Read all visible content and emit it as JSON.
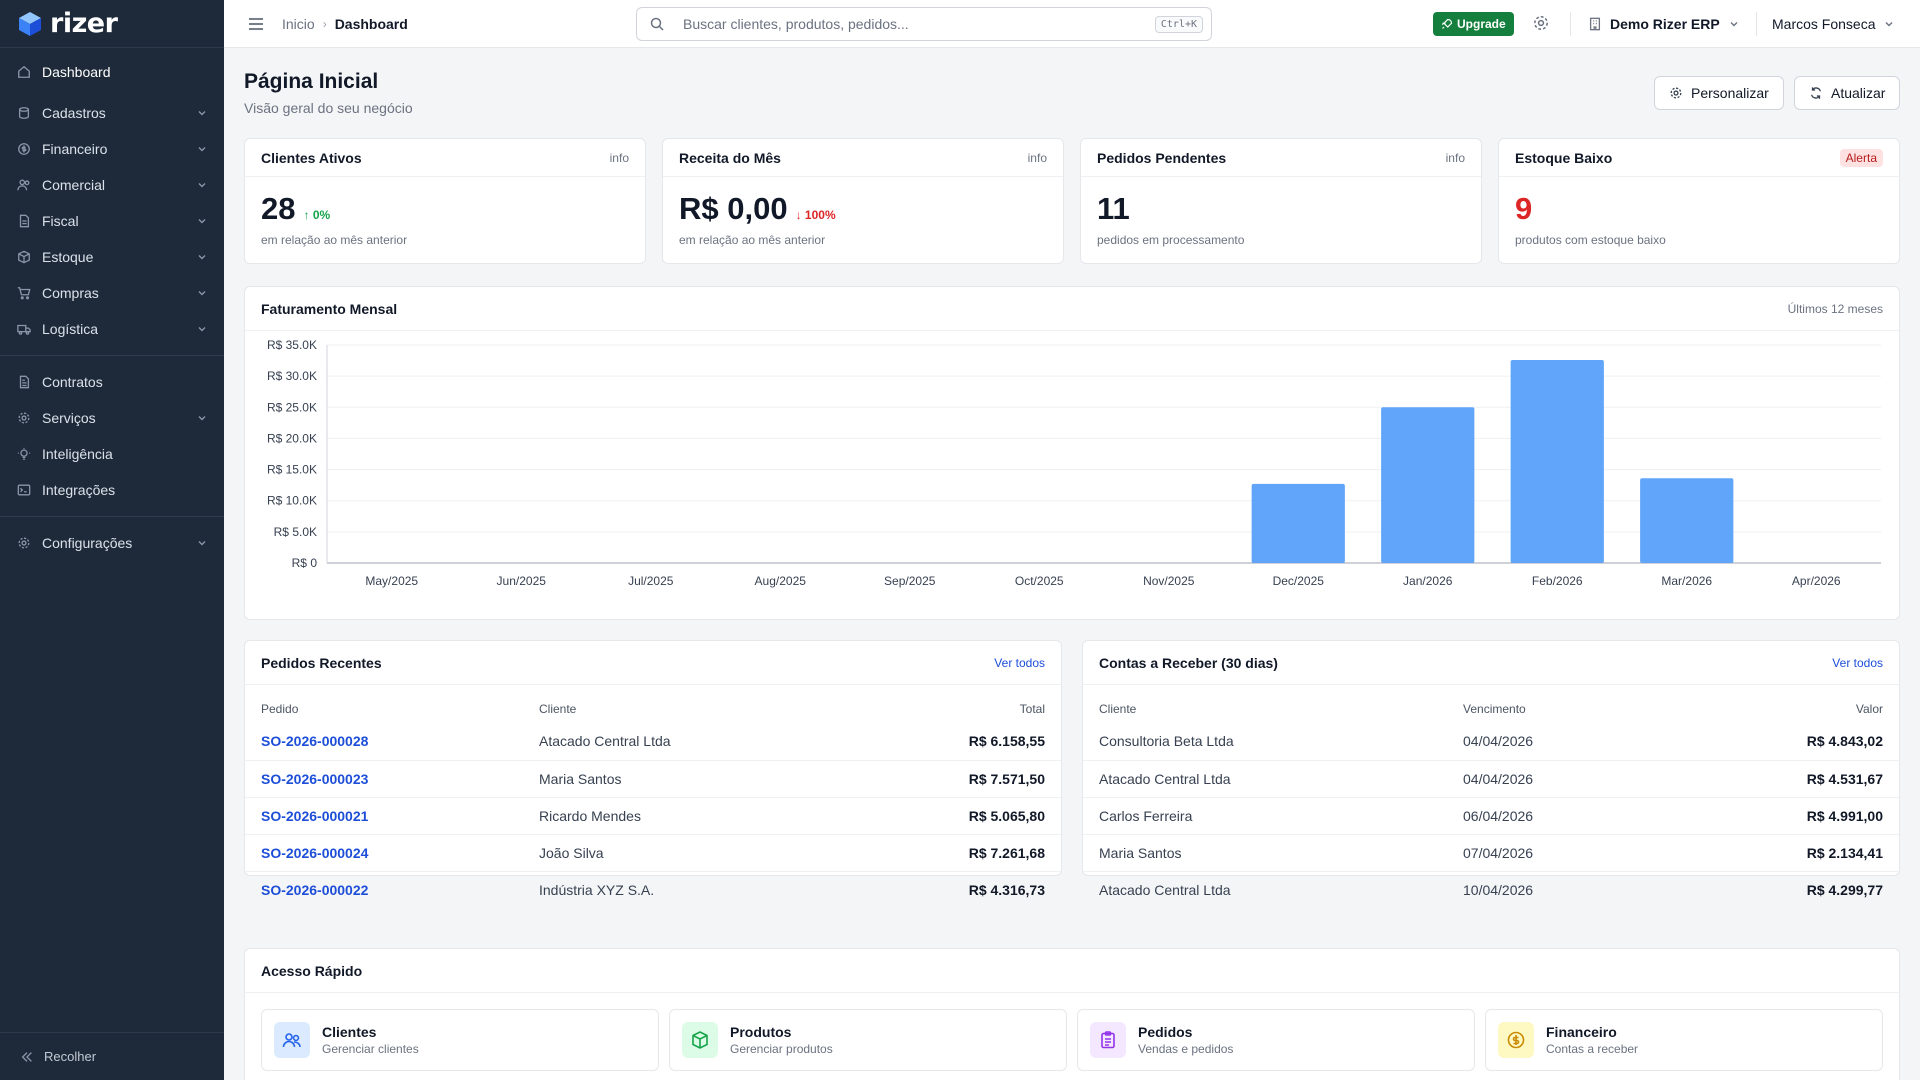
{
  "app": {
    "name": "rizer"
  },
  "sidebar": {
    "items": [
      {
        "label": "Dashboard",
        "icon": "home-icon"
      },
      {
        "label": "Cadastros",
        "icon": "database-icon"
      },
      {
        "label": "Financeiro",
        "icon": "dollar-icon"
      },
      {
        "label": "Comercial",
        "icon": "users-icon"
      },
      {
        "label": "Fiscal",
        "icon": "file-icon"
      },
      {
        "label": "Estoque",
        "icon": "box-icon"
      },
      {
        "label": "Compras",
        "icon": "cart-icon"
      },
      {
        "label": "Logística",
        "icon": "truck-icon"
      },
      {
        "label": "Contratos",
        "icon": "contract-icon"
      },
      {
        "label": "Serviços",
        "icon": "gear-icon"
      },
      {
        "label": "Inteligência",
        "icon": "bulb-icon"
      },
      {
        "label": "Integrações",
        "icon": "terminal-icon"
      },
      {
        "label": "Configurações",
        "icon": "settings-icon"
      }
    ],
    "collapse_label": "Recolher"
  },
  "topbar": {
    "breadcrumb_home": "Inicio",
    "breadcrumb_current": "Dashboard",
    "search_placeholder": "Buscar clientes, produtos, pedidos...",
    "search_shortcut": "Ctrl+K",
    "upgrade_label": "Upgrade",
    "org_name": "Demo Rizer ERP",
    "user_name": "Marcos Fonseca"
  },
  "page": {
    "title": "Página Inicial",
    "subtitle": "Visão geral do seu negócio",
    "customize_label": "Personalizar",
    "refresh_label": "Atualizar"
  },
  "kpis": [
    {
      "title": "Clientes Ativos",
      "tag": "info",
      "value": "28",
      "delta": "0%",
      "subtitle": "em relação ao mês anterior"
    },
    {
      "title": "Receita do Mês",
      "tag": "info",
      "value": "R$ 0,00",
      "delta": "100%",
      "subtitle": "em relação ao mês anterior"
    },
    {
      "title": "Pedidos Pendentes",
      "tag": "info",
      "value": "11",
      "subtitle": "pedidos em processamento"
    },
    {
      "title": "Estoque Baixo",
      "tag": "Alerta",
      "value": "9",
      "subtitle": "produtos com estoque baixo"
    }
  ],
  "revenue_card": {
    "title": "Faturamento Mensal",
    "period": "Últimos 12 meses"
  },
  "chart_data": {
    "type": "bar",
    "title": "Faturamento Mensal",
    "categories": [
      "May/2025",
      "Jun/2025",
      "Jul/2025",
      "Aug/2025",
      "Sep/2025",
      "Oct/2025",
      "Nov/2025",
      "Dec/2025",
      "Jan/2026",
      "Feb/2026",
      "Mar/2026",
      "Apr/2026"
    ],
    "values": [
      0,
      0,
      0,
      0,
      0,
      0,
      0,
      12700,
      25000,
      32600,
      13600,
      0
    ],
    "ylim": [
      0,
      35000
    ],
    "yticks": [
      "R$ 0",
      "R$ 5.0K",
      "R$ 10.0K",
      "R$ 15.0K",
      "R$ 20.0K",
      "R$ 25.0K",
      "R$ 30.0K",
      "R$ 35.0K"
    ],
    "grid": true,
    "bar_color": "#60a5fa"
  },
  "orders": {
    "title": "Pedidos Recentes",
    "view_all": "Ver todos",
    "headers": [
      "Pedido",
      "Cliente",
      "Total"
    ],
    "rows": [
      [
        "SO-2026-000028",
        "Atacado Central Ltda",
        "R$ 6.158,55"
      ],
      [
        "SO-2026-000023",
        "Maria Santos",
        "R$ 7.571,50"
      ],
      [
        "SO-2026-000021",
        "Ricardo Mendes",
        "R$ 5.065,80"
      ],
      [
        "SO-2026-000024",
        "João Silva",
        "R$ 7.261,68"
      ],
      [
        "SO-2026-000022",
        "Indústria XYZ S.A.",
        "R$ 4.316,73"
      ]
    ]
  },
  "receivables": {
    "title": "Contas a Receber (30 dias)",
    "view_all": "Ver todos",
    "headers": [
      "Cliente",
      "Vencimento",
      "Valor"
    ],
    "rows": [
      [
        "Consultoria Beta Ltda",
        "04/04/2026",
        "R$ 4.843,02"
      ],
      [
        "Atacado Central Ltda",
        "04/04/2026",
        "R$ 4.531,67"
      ],
      [
        "Carlos Ferreira",
        "06/04/2026",
        "R$ 4.991,00"
      ],
      [
        "Maria Santos",
        "07/04/2026",
        "R$ 2.134,41"
      ],
      [
        "Atacado Central Ltda",
        "10/04/2026",
        "R$ 4.299,77"
      ]
    ]
  },
  "quick_access": {
    "title": "Acesso Rápido",
    "items": [
      {
        "title": "Clientes",
        "subtitle": "Gerenciar clientes",
        "color": "#2563eb",
        "bg": "#dbeafe"
      },
      {
        "title": "Produtos",
        "subtitle": "Gerenciar produtos",
        "color": "#16a34a",
        "bg": "#dcfce7"
      },
      {
        "title": "Pedidos",
        "subtitle": "Vendas e pedidos",
        "color": "#9333ea",
        "bg": "#f3e8ff"
      },
      {
        "title": "Financeiro",
        "subtitle": "Contas a receber",
        "color": "#ca8a04",
        "bg": "#fef9c3"
      }
    ]
  }
}
